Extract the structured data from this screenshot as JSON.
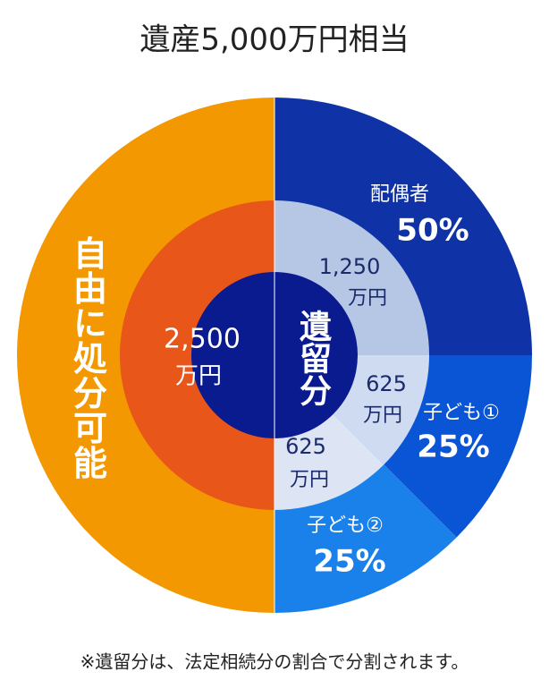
{
  "header": {
    "title": "遺産5,000万円相当"
  },
  "outer": {
    "free": "自由に処分可能",
    "spouse": {
      "label": "配偶者",
      "share": "50%"
    },
    "child1": {
      "label": "子ども①",
      "share": "25%"
    },
    "child2": {
      "label": "子ども②",
      "share": "25%"
    }
  },
  "inner": {
    "free": {
      "amount": "2,500",
      "unit": "万円"
    },
    "spouse": {
      "amount": "1,250",
      "unit": "万円"
    },
    "child1": {
      "amount": "625",
      "unit": "万円"
    },
    "child2": {
      "amount": "625",
      "unit": "万円"
    }
  },
  "center": "遺留分",
  "footnote": "※遺留分は、法定相続分の割合で分割されます。"
}
